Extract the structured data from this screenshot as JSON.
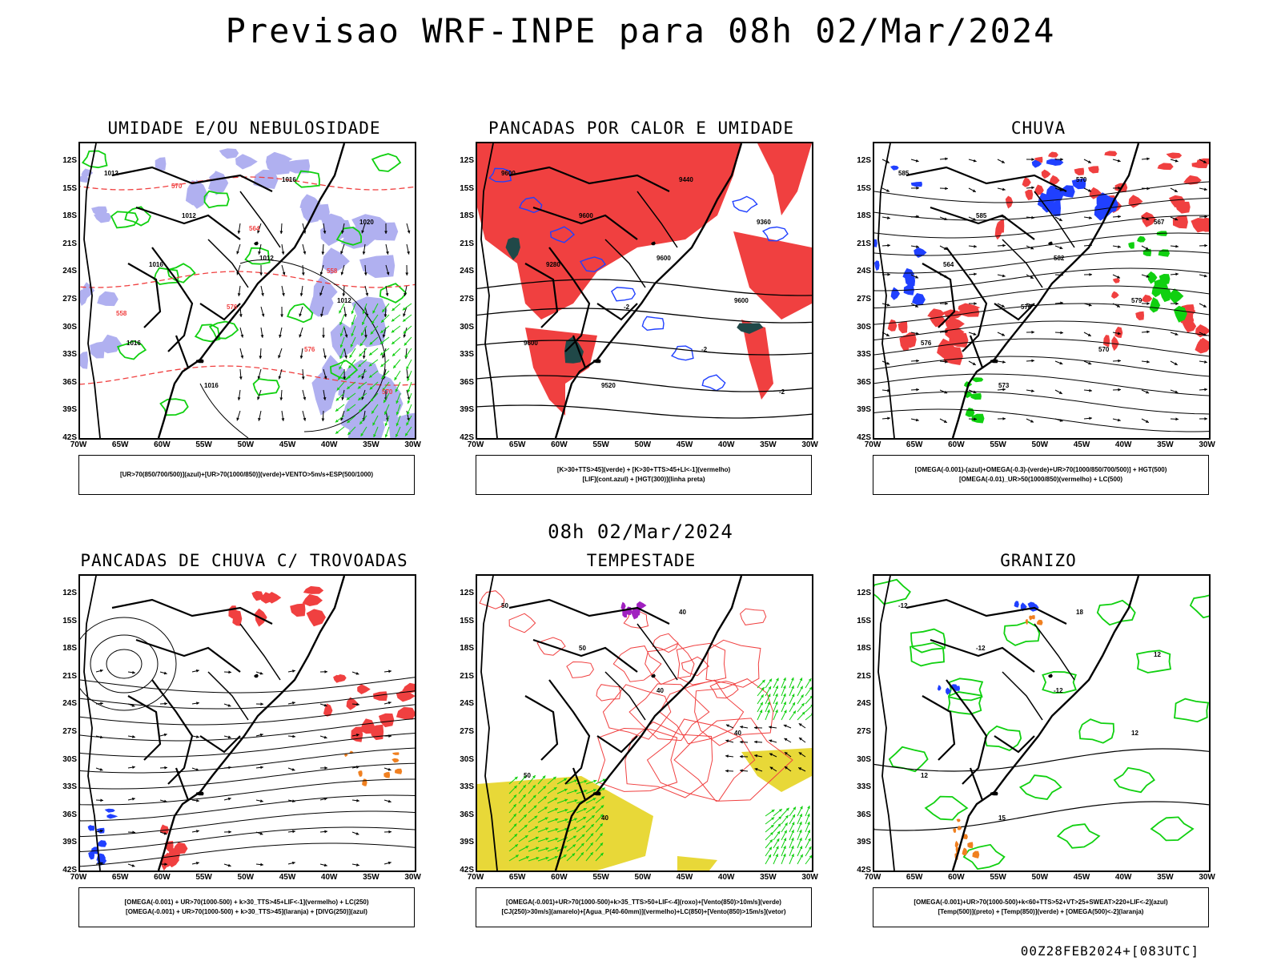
{
  "title": "Previsao WRF-INPE  para 08h 02/Mar/2024",
  "subtitle": "08h 02/Mar/2024",
  "footer": "00Z28FEB2024+[083UTC]",
  "axes": {
    "lat_ticks": [
      "12S",
      "15S",
      "18S",
      "21S",
      "24S",
      "27S",
      "30S",
      "33S",
      "36S",
      "39S",
      "42S"
    ],
    "lon_ticks": [
      "70W",
      "65W",
      "60W",
      "55W",
      "50W",
      "45W",
      "40W",
      "35W",
      "30W"
    ]
  },
  "panels": [
    {
      "id": "umidade",
      "title": "UMIDADE E/OU NEBULOSIDADE",
      "legend_lines": [
        "[UR>70(850/700/500)](azul)+[UR>70(1000/850)](verde)+VENTO>5m/s+ESP(500/1000)"
      ],
      "labels": [
        "1012",
        "1012",
        "1012",
        "1012",
        "1016",
        "1016",
        "1016",
        "1020",
        "1016",
        "576",
        "576",
        "570",
        "570",
        "564",
        "558",
        "558"
      ]
    },
    {
      "id": "pancadas-calor",
      "title": "PANCADAS POR CALOR E UMIDADE",
      "legend_lines": [
        "[K>30+TTS>45](verde) + [K>30+TTS>45+LI<-1](vermelho)",
        "[LIF](cont.azul) + [HGT(300)](linha preta)"
      ],
      "labels": [
        "9600",
        "9600",
        "9600",
        "9600",
        "9600",
        "9520",
        "9440",
        "9360",
        "9280",
        "-2",
        "-2",
        "-2"
      ]
    },
    {
      "id": "chuva",
      "title": "CHUVA",
      "legend_lines": [
        "[OMEGA(-0.001)-(azul)+OMEGA(-0.3)-(verde)+UR>70(1000/850/700/500)] + HGT(500)",
        "[OMEGA(-0.01)_UR>50(1000/850)(vermelho) + LC(500)"
      ],
      "labels": [
        "585",
        "585",
        "582",
        "579",
        "576",
        "573",
        "570",
        "567",
        "564",
        "576",
        "570"
      ]
    },
    {
      "id": "pancadas-trovoadas",
      "title": "PANCADAS DE CHUVA C/ TROVOADAS",
      "legend_lines": [
        "[OMEGA(-0.001) + UR>70(1000-500) + k>30_TTS>45+LIF<-1](vermelho) + LC(250)",
        "[OMEGA(-0.001) + UR>70(1000-500) + k>30_TTS>45](laranja) + [DIVG(250)](azul)"
      ],
      "labels": []
    },
    {
      "id": "tempestade",
      "title": "TEMPESTADE",
      "legend_lines": [
        "[OMEGA(-0.001)+UR>70(1000-500)+k>35_TTS>50+LIF<-4](roxo)+[Vento(850)>10m/s](verde)",
        "[CJ(250)>30m/s](amarelo)+[Agua_P(40-60mm)](vermelho)+LC(850)+[Vento(850)>15m/s](vetor)"
      ],
      "labels": [
        "50",
        "50",
        "40",
        "40",
        "50",
        "40",
        "40"
      ]
    },
    {
      "id": "granizo",
      "title": "GRANIZO",
      "legend_lines": [
        "[OMEGA(-0.001)+UR>70(1000-500)+k<60+TTS>52+VT>25+SWEAT>220+LIF<-2](azul)",
        "[Temp(500)](preto) + [Temp(850)](verde) + [OMEGA(500)<-2](laranja)"
      ],
      "labels": [
        "-12",
        "-12",
        "-12",
        "12",
        "12",
        "15",
        "18",
        "12"
      ]
    }
  ],
  "colors": {
    "red": "#f04040",
    "blue": "#2040ff",
    "green": "#10d010",
    "lavender": "#b0b0f0",
    "dark_teal": "#204848",
    "yellow": "#e8d838",
    "orange": "#f08020",
    "purple": "#a020c0"
  }
}
